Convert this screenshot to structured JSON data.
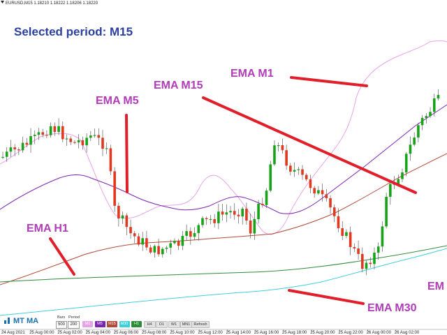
{
  "window": {
    "symbol_line": "EURUSD,M15  1.18210 1.18222 1.18206 1.18220"
  },
  "header": {
    "selected_period": "Selected period: M15"
  },
  "annotations": {
    "ema_m1": "EMA M1",
    "ema_m5": "EMA M5",
    "ema_m15": "EMA M15",
    "ema_h1": "EMA H1",
    "ema_m30": "EMA M30",
    "ema_partial": "EM"
  },
  "colors": {
    "bull": "#17a317",
    "bear": "#e0391f",
    "annotation": "#b03cb8",
    "pointer": "#e01f2b",
    "title": "#2a3f9e",
    "ema_m1": "#e7a3e7",
    "ema_m5": "#7a25b0",
    "ema_m15": "#b24a3a",
    "ema_m30": "#3dd0d8",
    "ema_h1": "#2e8b3a"
  },
  "time_axis": {
    "labels": [
      "24 Aug 2021",
      "25 Aug 00:00",
      "25 Aug 02:00",
      "25 Aug 04:00",
      "25 Aug 06:00",
      "25 Aug 08:00",
      "25 Aug 10:00",
      "25 Aug 12:00",
      "25 Aug 14:00",
      "25 Aug 16:00",
      "25 Aug 18:00",
      "25 Aug 20:00",
      "25 Aug 22:00",
      "26 Aug 00:00",
      "26 Aug 02:00"
    ]
  },
  "panel": {
    "title": "MT MA",
    "bars_label": "Bars",
    "period_label": "Period",
    "bars_value": "500",
    "period_value": "200",
    "buttons": [
      "M1",
      "M5",
      "M15",
      "M30",
      "H1",
      "H4",
      "D1",
      "W1",
      "MN1"
    ],
    "refresh": "Refresh"
  }
}
